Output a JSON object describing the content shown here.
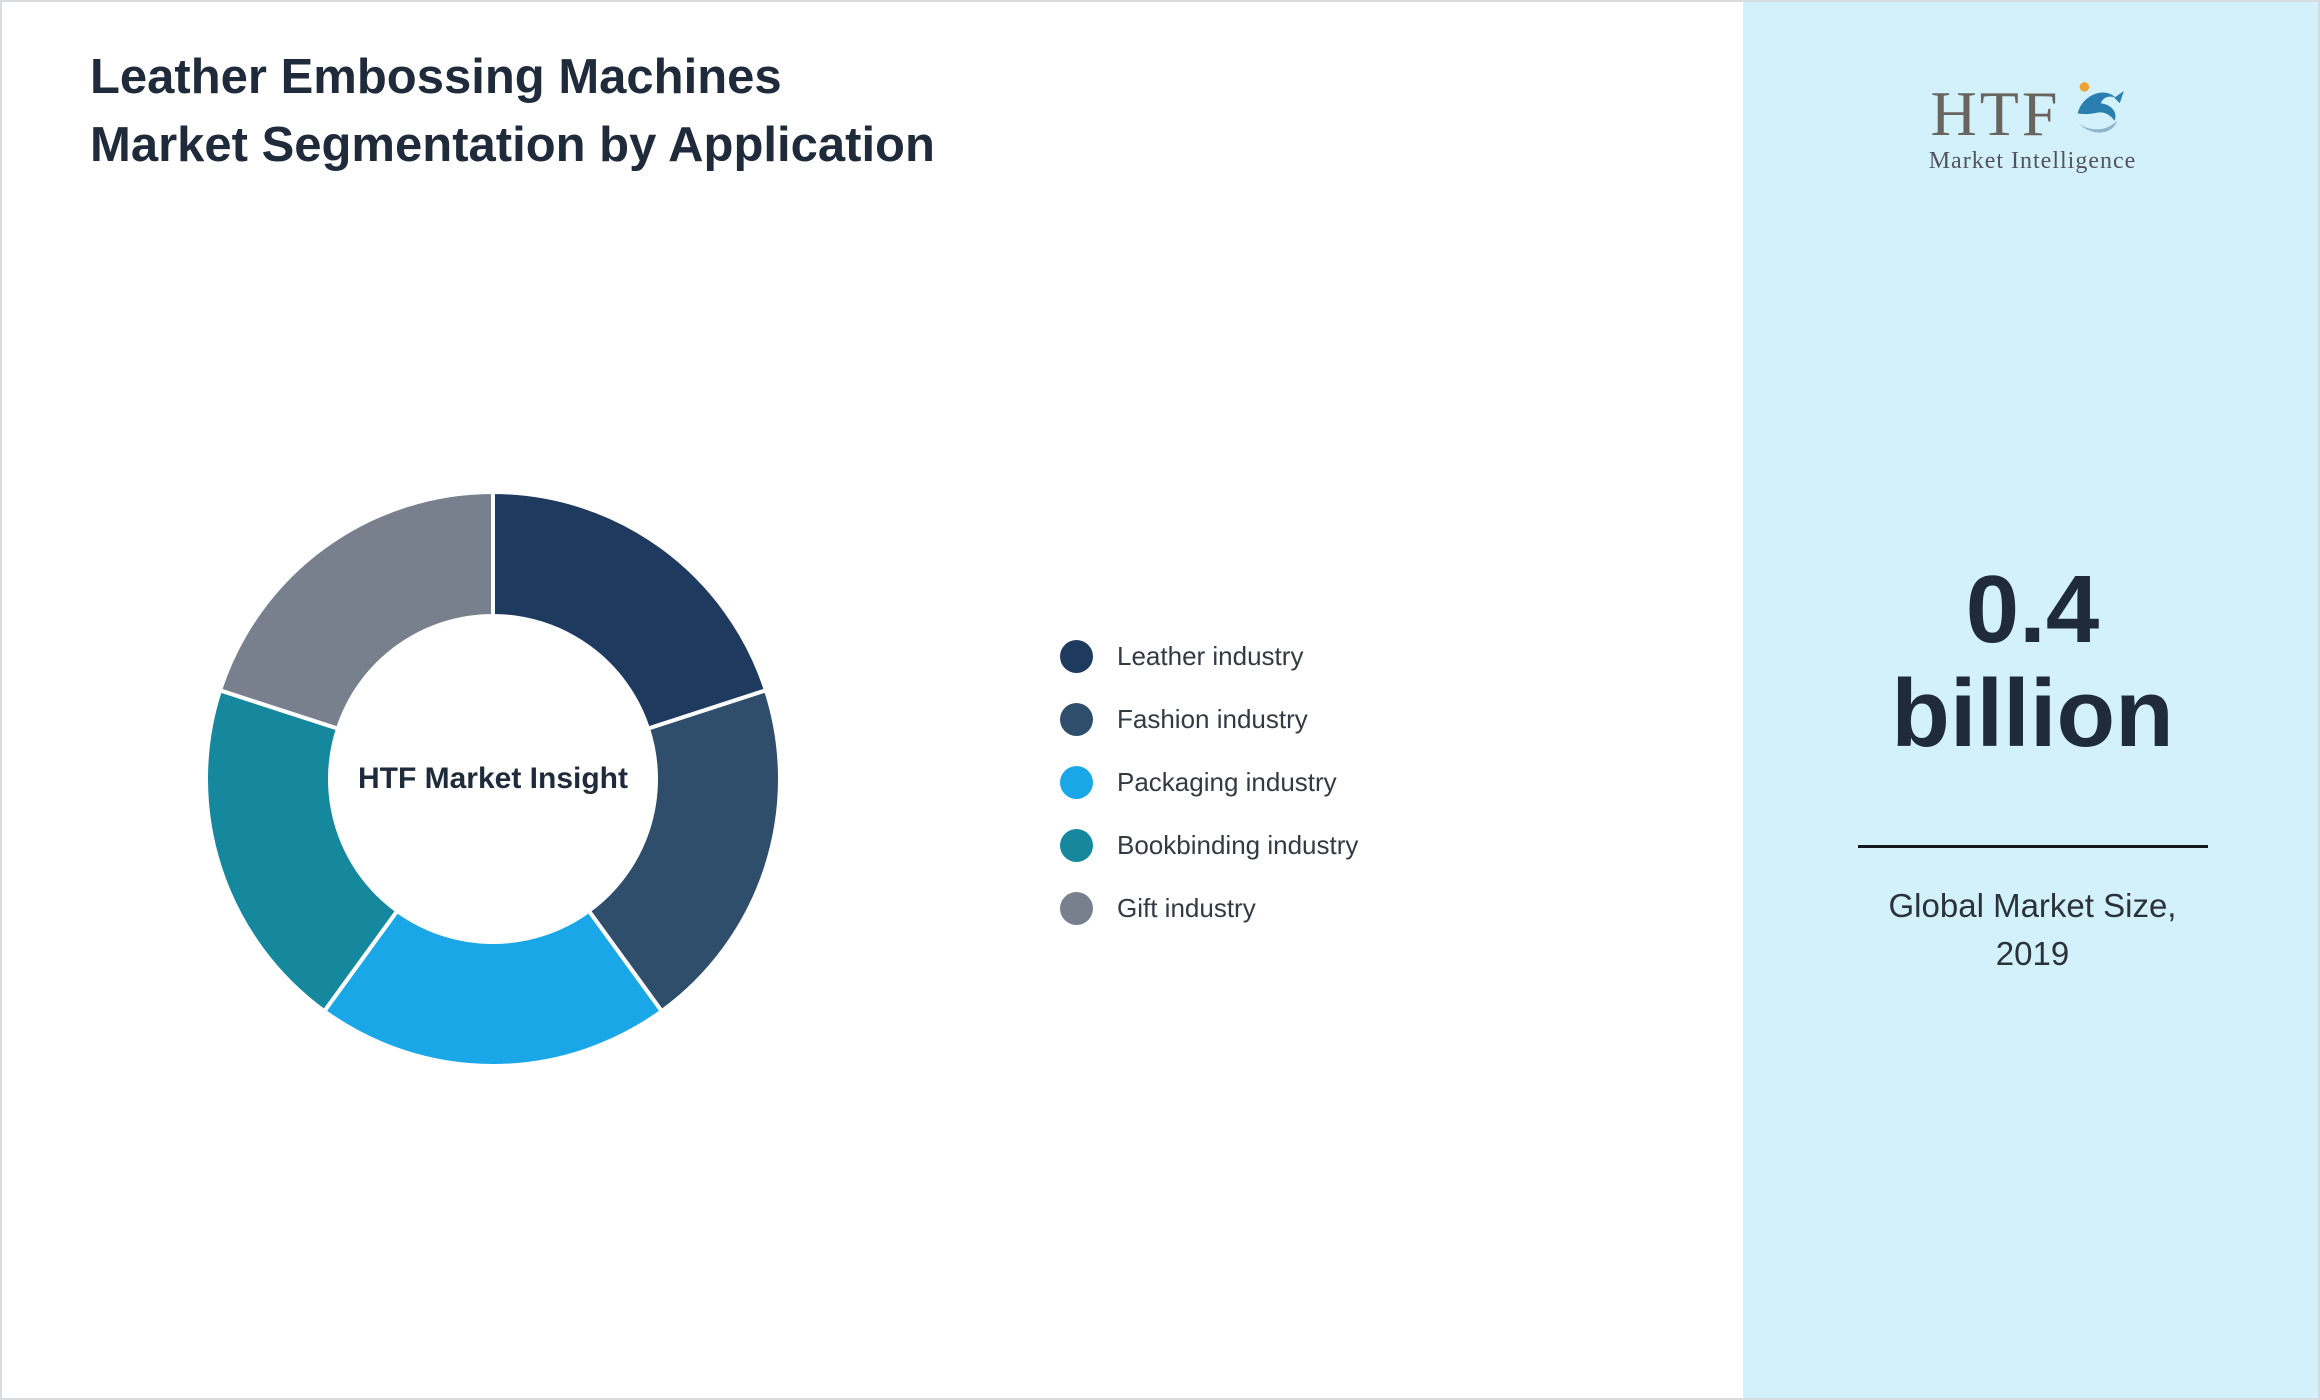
{
  "header": {
    "title": "Leather Embossing Machines Market Segmentation by Application"
  },
  "chart_data": {
    "type": "pie",
    "donut": true,
    "title": "Leather Embossing Machines Market Segmentation by Application",
    "center_label": "HTF Market Insight",
    "legend_position": "right",
    "start_angle_deg": 0,
    "direction": "clockwise",
    "series": [
      {
        "name": "Leather industry",
        "value": 20,
        "color": "#1e3a5f"
      },
      {
        "name": "Fashion industry",
        "value": 20,
        "color": "#2f4e6b"
      },
      {
        "name": "Packaging industry",
        "value": 20,
        "color": "#1aa7e8"
      },
      {
        "name": "Bookbinding industry",
        "value": 20,
        "color": "#16889e"
      },
      {
        "name": "Gift industry",
        "value": 20,
        "color": "#77808c"
      }
    ]
  },
  "sidebar": {
    "background": "#d2f1fa",
    "logo": {
      "text": "HTF",
      "subtext": "Market Intelligence",
      "mark_colors": {
        "dolphin_blue": "#4aa3cf",
        "dolphin_dark": "#2b7fb0",
        "sun_orange": "#f2a230"
      }
    },
    "stat_value": "0.4 billion",
    "stat_label": "Global Market Size, 2019"
  }
}
